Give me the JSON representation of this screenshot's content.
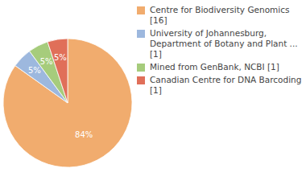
{
  "chart_data": {
    "type": "pie",
    "categories": [
      "Centre for Biodiversity Genomics [16]",
      "University of Johannesburg, Department of Botany and Plant ... [1]",
      "Mined from GenBank, NCBI [1]",
      "Canadian Centre for DNA Barcoding [1]"
    ],
    "values": [
      84,
      5,
      5,
      5
    ],
    "colors": [
      "#f1ac6e",
      "#9db8de",
      "#a6cc7c",
      "#e06f59"
    ],
    "data_labels": true,
    "value_labels": [
      "84%",
      "5%",
      "5%",
      "5%"
    ],
    "legend": "right"
  }
}
